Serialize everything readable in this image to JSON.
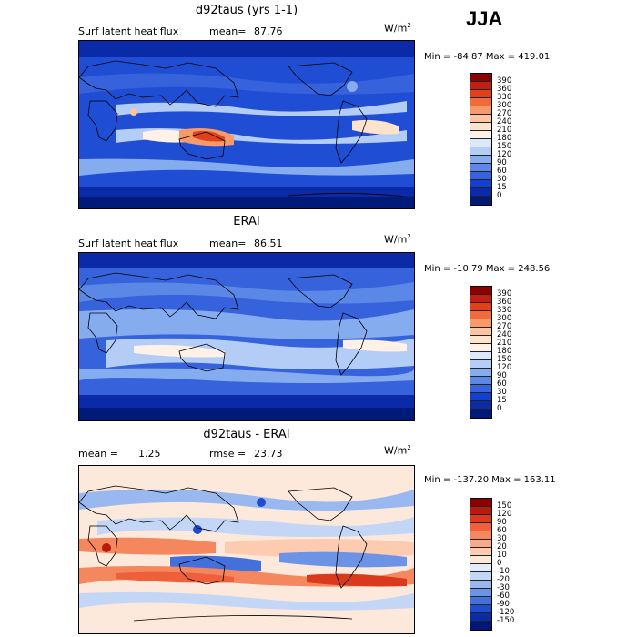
{
  "season": "JJA",
  "units": "W/m",
  "units_exp": "2",
  "panels": [
    {
      "title": "d92taus (yrs 1-1)",
      "subtitle_left": "Surf latent heat flux",
      "stat_label": "mean=",
      "stat_value": "87.76",
      "minmax": "Min = -84.87 Max = 419.01",
      "colorbar": {
        "labels": [
          "390",
          "360",
          "330",
          "300",
          "270",
          "240",
          "210",
          "180",
          "150",
          "120",
          "90",
          "60",
          "30",
          "15",
          "0"
        ],
        "colors": [
          "#8b0000",
          "#c0200f",
          "#e0401a",
          "#f06a3a",
          "#f69a6a",
          "#fbc4a2",
          "#fde2cc",
          "#fff0e8",
          "#dbe8fb",
          "#b3cdf7",
          "#86acf0",
          "#5b88e6",
          "#3662dc",
          "#1440cf",
          "#0a2aa8",
          "#001a7a"
        ]
      }
    },
    {
      "title": "ERAI",
      "subtitle_left": "Surf latent heat flux",
      "stat_label": "mean=",
      "stat_value": "86.51",
      "minmax": "Min = -10.79 Max = 248.56",
      "colorbar": {
        "labels": [
          "390",
          "360",
          "330",
          "300",
          "270",
          "240",
          "210",
          "180",
          "150",
          "120",
          "90",
          "60",
          "30",
          "15",
          "0"
        ],
        "colors": [
          "#8b0000",
          "#c0200f",
          "#e0401a",
          "#f06a3a",
          "#f69a6a",
          "#fbc4a2",
          "#fde2cc",
          "#fff0e8",
          "#dbe8fb",
          "#b3cdf7",
          "#86acf0",
          "#5b88e6",
          "#3662dc",
          "#1440cf",
          "#0a2aa8",
          "#001a7a"
        ]
      }
    },
    {
      "title": "d92taus - ERAI",
      "subtitle_left": "mean =",
      "stat_value_left": "1.25",
      "stat_label": "rmse =",
      "stat_value": "23.73",
      "minmax": "Min = -137.20 Max = 163.11",
      "colorbar": {
        "labels": [
          "150",
          "120",
          "90",
          "60",
          "30",
          "20",
          "10",
          "0",
          "-10",
          "-20",
          "-30",
          "-60",
          "-90",
          "-120",
          "-150"
        ],
        "colors": [
          "#8b0000",
          "#b81a0c",
          "#d93a1c",
          "#ee5f3a",
          "#f5875f",
          "#f9ab88",
          "#fccbb0",
          "#fde8dc",
          "#e3ecfa",
          "#c3d6f6",
          "#9ab8f0",
          "#6c93e6",
          "#4470dc",
          "#1f4ccf",
          "#0a2ba8",
          "#001777"
        ]
      }
    }
  ]
}
